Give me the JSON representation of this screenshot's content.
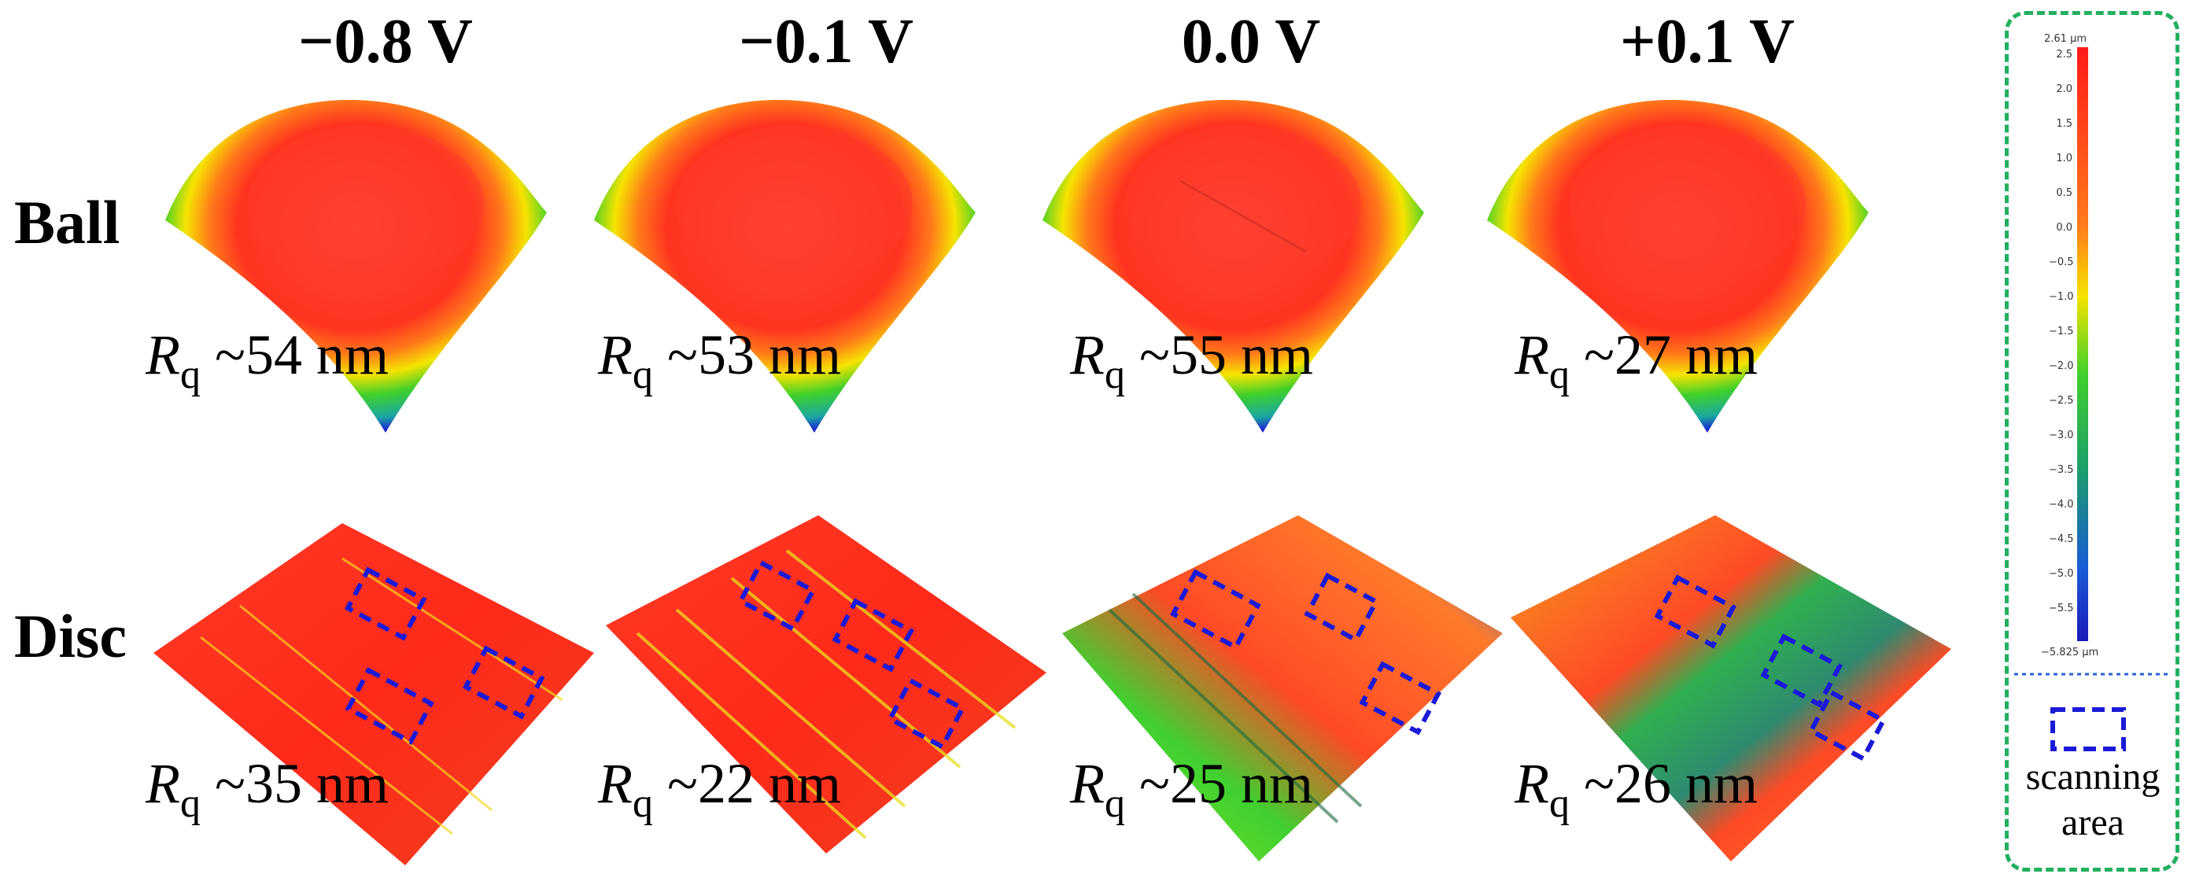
{
  "columns": [
    "−0.8 V",
    "−0.1 V",
    "0.0 V",
    "+0.1 V"
  ],
  "rows": {
    "ball": "Ball",
    "disc": "Disc"
  },
  "roughness": {
    "symbol": "R",
    "subscript": "q",
    "ball": [
      "~54 nm",
      "~53 nm",
      "~55 nm",
      "~27 nm"
    ],
    "disc": [
      "~35 nm",
      "~22 nm",
      "~25 nm",
      "~26 nm"
    ]
  },
  "colorbar": {
    "max_label": "2.61 µm",
    "min_label": "−5.825 µm",
    "ticks": [
      "2.5",
      "2.0",
      "1.5",
      "1.0",
      "0.5",
      "0.0",
      "−0.5",
      "−1.0",
      "−1.5",
      "−2.0",
      "−2.5",
      "−3.0",
      "−3.5",
      "−4.0",
      "−4.5",
      "−5.0",
      "−5.5"
    ],
    "range_um": [
      -5.825,
      2.61
    ]
  },
  "legend": {
    "line1": "scanning",
    "line2": "area"
  },
  "colors": {
    "red": "#ff2a1a",
    "yellow": "#f5e400",
    "green": "#2fd02f",
    "blue": "#1a1ad8",
    "frame": "#22b060"
  }
}
